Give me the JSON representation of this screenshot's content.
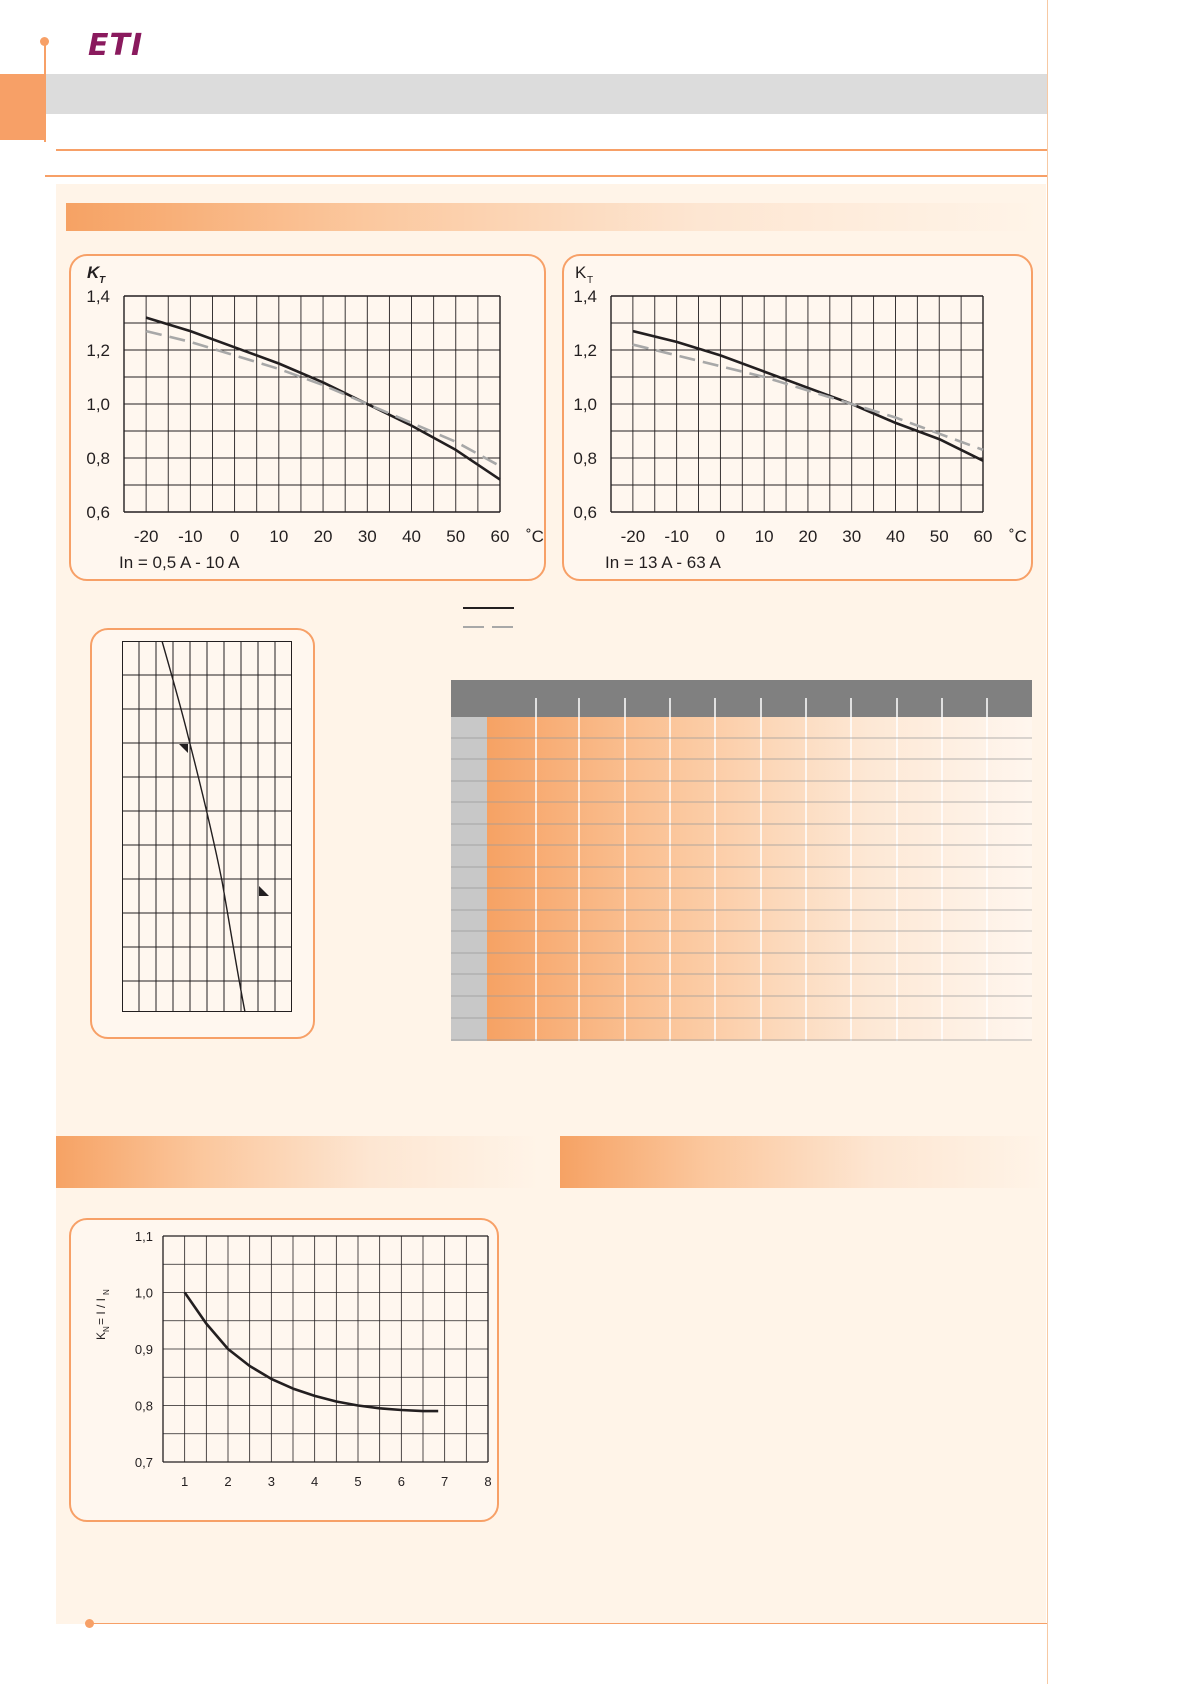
{
  "brand": {
    "logo_text": "ETI"
  },
  "colors": {
    "accent": "#f7a067",
    "brand": "#8a1a5e",
    "curve": "#231f20",
    "dashed": "#a8a8a8",
    "table_header": "#808080"
  },
  "chart_data": [
    {
      "type": "line",
      "ylabel": "K",
      "ylabel_sub": "T",
      "unit": "˚C",
      "note": "In = 0,5 A - 10 A",
      "x_ticks": [
        "-20",
        "-10",
        "0",
        "10",
        "20",
        "30",
        "40",
        "50",
        "60"
      ],
      "y_ticks": [
        "1,4",
        "1,2",
        "1,0",
        "0,8",
        "0,6"
      ],
      "xlim": [
        -25,
        60
      ],
      "ylim": [
        0.6,
        1.4
      ],
      "series": [
        {
          "style": "solid",
          "x": [
            -20,
            -10,
            0,
            10,
            20,
            30,
            40,
            50,
            60
          ],
          "y": [
            1.32,
            1.27,
            1.21,
            1.15,
            1.08,
            1.0,
            0.92,
            0.83,
            0.72
          ]
        },
        {
          "style": "dashed",
          "x": [
            -20,
            -10,
            0,
            10,
            20,
            30,
            40,
            50,
            60
          ],
          "y": [
            1.27,
            1.23,
            1.18,
            1.13,
            1.07,
            1.0,
            0.93,
            0.86,
            0.77
          ]
        }
      ]
    },
    {
      "type": "line",
      "ylabel": "K",
      "ylabel_sub": "T",
      "unit": "˚C",
      "note": "In = 13 A - 63 A",
      "x_ticks": [
        "-20",
        "-10",
        "0",
        "10",
        "20",
        "30",
        "40",
        "50",
        "60"
      ],
      "y_ticks": [
        "1,4",
        "1,2",
        "1,0",
        "0,8",
        "0,6"
      ],
      "xlim": [
        -25,
        60
      ],
      "ylim": [
        0.6,
        1.4
      ],
      "series": [
        {
          "style": "solid",
          "x": [
            -20,
            -10,
            0,
            10,
            20,
            30,
            40,
            50,
            60
          ],
          "y": [
            1.27,
            1.23,
            1.18,
            1.12,
            1.06,
            1.0,
            0.93,
            0.87,
            0.79
          ]
        },
        {
          "style": "dashed",
          "x": [
            -20,
            -10,
            0,
            10,
            20,
            30,
            40,
            50,
            60
          ],
          "y": [
            1.22,
            1.18,
            1.14,
            1.1,
            1.05,
            1.0,
            0.95,
            0.89,
            0.83
          ]
        }
      ]
    },
    {
      "type": "line",
      "ylabel": "K",
      "ylabel_sub": "N",
      "ylabel_rest": "= I / I",
      "ylabel_rest_sub": "N",
      "x_ticks": [
        "1",
        "2",
        "3",
        "4",
        "5",
        "6",
        "7",
        "8"
      ],
      "y_ticks": [
        "1,1",
        "1,0",
        "0,9",
        "0,8",
        "0,7"
      ],
      "xlim": [
        0.5,
        8
      ],
      "ylim": [
        0.7,
        1.1
      ],
      "series": [
        {
          "style": "solid",
          "x": [
            1,
            1.5,
            2,
            2.5,
            3,
            3.5,
            4,
            4.5,
            5,
            5.5,
            6,
            6.5,
            6.85
          ],
          "y": [
            1.0,
            0.945,
            0.9,
            0.87,
            0.847,
            0.83,
            0.817,
            0.807,
            0.8,
            0.795,
            0.792,
            0.79,
            0.79
          ]
        }
      ]
    }
  ]
}
